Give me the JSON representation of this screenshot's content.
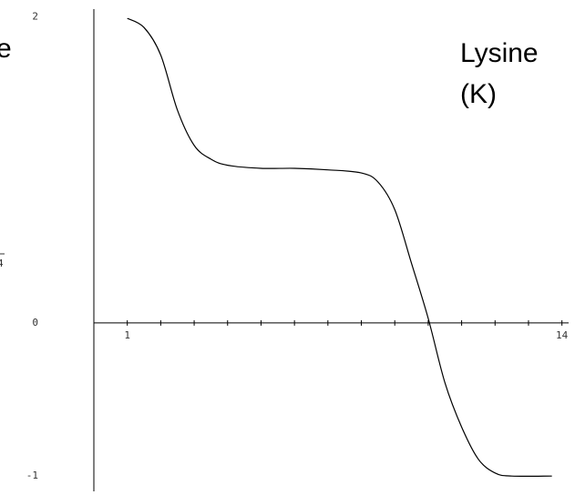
{
  "chart_data": {
    "type": "line",
    "annotations": [
      "Lysine",
      "(K)",
      "e",
      "4"
    ],
    "x": [
      1,
      1.5,
      2,
      2.5,
      3,
      3.5,
      4,
      5,
      6,
      7,
      8,
      8.5,
      9,
      9.5,
      10,
      10.5,
      11,
      11.5,
      12,
      12.5,
      13.7
    ],
    "series": [
      {
        "color": "#000000",
        "values": [
          1.99,
          1.93,
          1.75,
          1.39,
          1.16,
          1.07,
          1.03,
          1.01,
          1.01,
          1.0,
          0.98,
          0.92,
          0.74,
          0.39,
          0.03,
          -0.39,
          -0.68,
          -0.89,
          -0.98,
          -1.0,
          -1.0
        ]
      }
    ],
    "xlim": [
      0,
      14.2
    ],
    "ylim": [
      -1.1,
      2.05
    ],
    "xticks": [
      1,
      14
    ],
    "x_minor_ticks": [
      2,
      3,
      4,
      5,
      6,
      7,
      8,
      9,
      10,
      11,
      12,
      13
    ],
    "yticks": [
      2,
      0,
      -1
    ]
  }
}
